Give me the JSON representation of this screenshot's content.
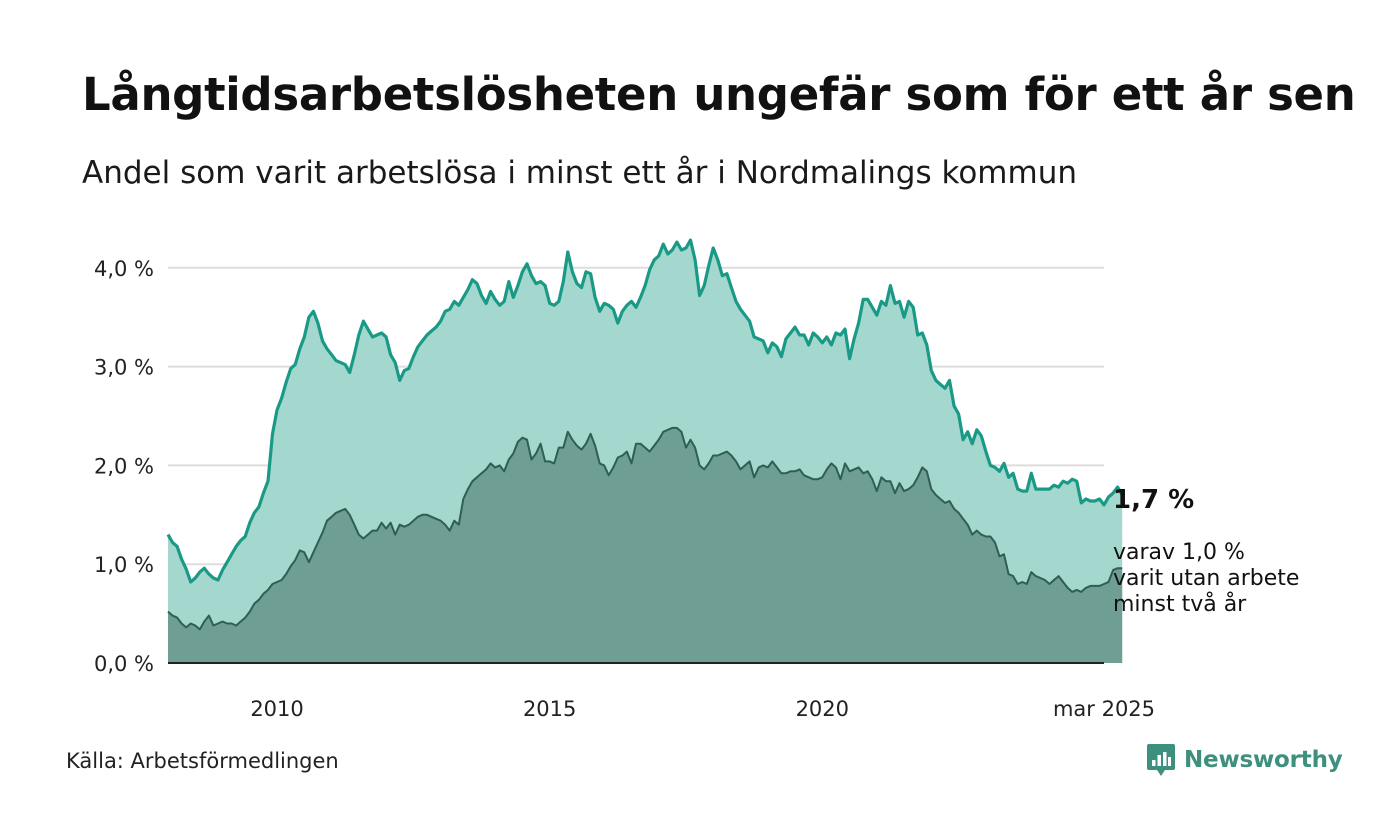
{
  "title": "Långtidsarbetslösheten ungefär som för ett år sen",
  "subtitle": "Andel som varit arbetslösa i minst ett år i Nordmalings kommun",
  "source": "Källa: Arbetsförmedlingen",
  "brand": "Newsworthy",
  "colors": {
    "top_line": "#1a9a86",
    "top_fill": "#a4d8ce",
    "bottom_line": "#2f5e54",
    "bottom_fill": "#6f9e94",
    "grid": "#dddddd",
    "axis": "#222222",
    "brand": "#3d8f7e"
  },
  "annotation": {
    "value": "1,7 %",
    "lines": [
      "varav 1,0 %",
      "varit utan arbete",
      "minst två år"
    ]
  },
  "chart_data": {
    "type": "area",
    "x_start": "2008-01",
    "x_end": "2025-03",
    "frequency": "monthly",
    "y_ticks": [
      "0,0 %",
      "1,0 %",
      "2,0 %",
      "3,0 %",
      "4,0 %"
    ],
    "x_tick_labels": [
      {
        "date": "2010-01",
        "label": "2010"
      },
      {
        "date": "2015-01",
        "label": "2015"
      },
      {
        "date": "2020-01",
        "label": "2020"
      },
      {
        "date": "2025-03",
        "label": "mar 2025"
      }
    ],
    "ylim": [
      0,
      4.3
    ],
    "grid": true,
    "series": [
      {
        "name": "minst ett år",
        "values": [
          1.3,
          1.22,
          1.18,
          1.05,
          0.95,
          0.82,
          0.86,
          0.92,
          0.96,
          0.9,
          0.86,
          0.84,
          0.94,
          1.02,
          1.1,
          1.18,
          1.24,
          1.28,
          1.42,
          1.52,
          1.58,
          1.72,
          1.84,
          2.32,
          2.56,
          2.68,
          2.84,
          2.98,
          3.02,
          3.18,
          3.3,
          3.5,
          3.56,
          3.44,
          3.26,
          3.18,
          3.12,
          3.06,
          3.04,
          3.02,
          2.94,
          3.12,
          3.32,
          3.46,
          3.38,
          3.3,
          3.32,
          3.34,
          3.3,
          3.12,
          3.04,
          2.86,
          2.96,
          2.98,
          3.1,
          3.2,
          3.26,
          3.32,
          3.36,
          3.4,
          3.46,
          3.56,
          3.58,
          3.66,
          3.62,
          3.7,
          3.78,
          3.88,
          3.84,
          3.72,
          3.64,
          3.76,
          3.68,
          3.62,
          3.66,
          3.86,
          3.7,
          3.82,
          3.96,
          4.04,
          3.92,
          3.84,
          3.86,
          3.82,
          3.64,
          3.62,
          3.66,
          3.86,
          4.16,
          3.96,
          3.84,
          3.8,
          3.96,
          3.94,
          3.7,
          3.56,
          3.64,
          3.62,
          3.58,
          3.44,
          3.56,
          3.62,
          3.66,
          3.6,
          3.7,
          3.82,
          3.98,
          4.08,
          4.12,
          4.24,
          4.14,
          4.18,
          4.26,
          4.18,
          4.2,
          4.28,
          4.08,
          3.72,
          3.82,
          4.02,
          4.2,
          4.08,
          3.92,
          3.94,
          3.8,
          3.66,
          3.58,
          3.52,
          3.46,
          3.3,
          3.28,
          3.26,
          3.14,
          3.24,
          3.2,
          3.1,
          3.28,
          3.34,
          3.4,
          3.32,
          3.32,
          3.22,
          3.34,
          3.3,
          3.24,
          3.3,
          3.22,
          3.34,
          3.32,
          3.38,
          3.08,
          3.28,
          3.44,
          3.68,
          3.68,
          3.6,
          3.52,
          3.66,
          3.62,
          3.82,
          3.64,
          3.66,
          3.5,
          3.66,
          3.6,
          3.32,
          3.34,
          3.22,
          2.96,
          2.86,
          2.82,
          2.78,
          2.86,
          2.6,
          2.52,
          2.26,
          2.34,
          2.22,
          2.36,
          2.3,
          2.14,
          2.0,
          1.98,
          1.94,
          2.02,
          1.88,
          1.92,
          1.76,
          1.74,
          1.74,
          1.92,
          1.76,
          1.76,
          1.76,
          1.76,
          1.8,
          1.78,
          1.84,
          1.82,
          1.86,
          1.84,
          1.62,
          1.66,
          1.64,
          1.64,
          1.66,
          1.6,
          1.68,
          1.72,
          1.78,
          1.7
        ]
      },
      {
        "name": "varav minst två år",
        "values": [
          0.52,
          0.48,
          0.46,
          0.4,
          0.36,
          0.4,
          0.38,
          0.34,
          0.42,
          0.48,
          0.38,
          0.4,
          0.42,
          0.4,
          0.4,
          0.38,
          0.42,
          0.46,
          0.52,
          0.6,
          0.64,
          0.7,
          0.74,
          0.8,
          0.82,
          0.84,
          0.9,
          0.98,
          1.04,
          1.14,
          1.12,
          1.02,
          1.12,
          1.22,
          1.32,
          1.44,
          1.48,
          1.52,
          1.54,
          1.56,
          1.5,
          1.4,
          1.3,
          1.26,
          1.3,
          1.34,
          1.34,
          1.42,
          1.36,
          1.42,
          1.3,
          1.4,
          1.38,
          1.4,
          1.44,
          1.48,
          1.5,
          1.5,
          1.48,
          1.46,
          1.44,
          1.4,
          1.34,
          1.44,
          1.4,
          1.66,
          1.76,
          1.84,
          1.88,
          1.92,
          1.96,
          2.02,
          1.98,
          2.0,
          1.94,
          2.06,
          2.12,
          2.24,
          2.28,
          2.26,
          2.06,
          2.12,
          2.22,
          2.04,
          2.04,
          2.02,
          2.18,
          2.18,
          2.34,
          2.26,
          2.2,
          2.16,
          2.22,
          2.32,
          2.2,
          2.02,
          2.0,
          1.9,
          1.98,
          2.08,
          2.1,
          2.14,
          2.02,
          2.22,
          2.22,
          2.18,
          2.14,
          2.2,
          2.26,
          2.34,
          2.36,
          2.38,
          2.38,
          2.34,
          2.18,
          2.26,
          2.18,
          2.0,
          1.96,
          2.02,
          2.1,
          2.1,
          2.12,
          2.14,
          2.1,
          2.04,
          1.96,
          2.0,
          2.04,
          1.88,
          1.98,
          2.0,
          1.98,
          2.04,
          1.98,
          1.92,
          1.92,
          1.94,
          1.94,
          1.96,
          1.9,
          1.88,
          1.86,
          1.86,
          1.88,
          1.96,
          2.02,
          1.98,
          1.86,
          2.02,
          1.94,
          1.96,
          1.98,
          1.92,
          1.94,
          1.86,
          1.74,
          1.88,
          1.84,
          1.84,
          1.72,
          1.82,
          1.74,
          1.76,
          1.8,
          1.88,
          1.98,
          1.94,
          1.76,
          1.7,
          1.66,
          1.62,
          1.64,
          1.56,
          1.52,
          1.46,
          1.4,
          1.3,
          1.34,
          1.3,
          1.28,
          1.28,
          1.22,
          1.08,
          1.1,
          0.9,
          0.88,
          0.8,
          0.82,
          0.8,
          0.92,
          0.88,
          0.86,
          0.84,
          0.8,
          0.84,
          0.88,
          0.82,
          0.76,
          0.72,
          0.74,
          0.72,
          0.76,
          0.78,
          0.78,
          0.78,
          0.8,
          0.82,
          0.94,
          0.96,
          0.96
        ]
      }
    ]
  }
}
